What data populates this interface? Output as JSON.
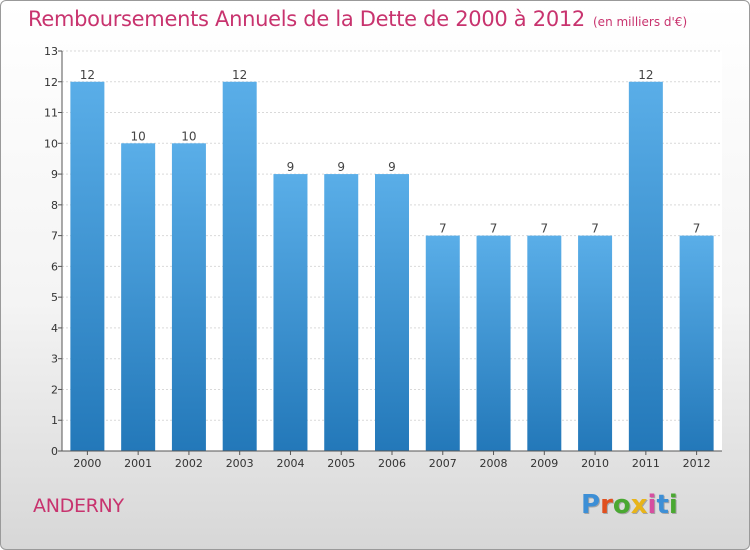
{
  "header": {
    "title": "Remboursements Annuels de la Dette de 2000 à 2012",
    "unit": "(en milliers d'€)"
  },
  "footer": {
    "city": "ANDERNY",
    "logo": {
      "letters": [
        "P",
        "r",
        "o",
        "x",
        "i",
        "t",
        "i"
      ],
      "colors": [
        "#3d8fd6",
        "#e0501f",
        "#4aa832",
        "#e8b41a",
        "#d64fa0",
        "#3d8fd6",
        "#4aa832"
      ]
    }
  },
  "chart_data": {
    "type": "bar",
    "categories": [
      "2000",
      "2001",
      "2002",
      "2003",
      "2004",
      "2005",
      "2006",
      "2007",
      "2008",
      "2009",
      "2010",
      "2011",
      "2012"
    ],
    "values": [
      12,
      10,
      10,
      12,
      9,
      9,
      9,
      7,
      7,
      7,
      7,
      12,
      7
    ],
    "data_labels": [
      "12",
      "10",
      "10",
      "12",
      "9",
      "9",
      "9",
      "7",
      "7",
      "7",
      "7",
      "12",
      "7"
    ],
    "yticks": [
      "0",
      "1",
      "2",
      "3",
      "4",
      "5",
      "6",
      "7",
      "8",
      "9",
      "10",
      "11",
      "12",
      "13"
    ],
    "ylim": [
      0,
      13
    ],
    "grid": true,
    "bar_color_top": "#5aaee8",
    "bar_color_bottom": "#2378b9"
  }
}
